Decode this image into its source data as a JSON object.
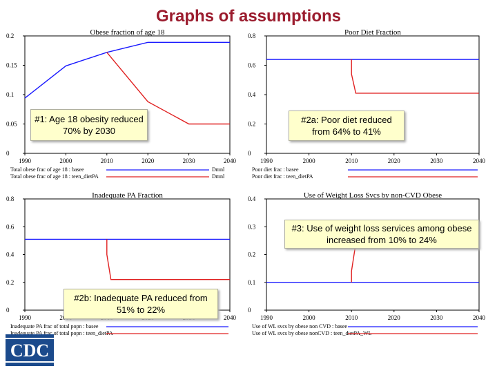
{
  "slide": {
    "title": "Graphs of assumptions",
    "logo_text": "CDC"
  },
  "callouts": {
    "obesity": "#1: Age 18 obesity reduced 70% by 2030",
    "diet": "#2a: Poor diet reduced from 64% to 41%",
    "pa": "#2b: Inadequate PA reduced from 51% to 22%",
    "wl": "#3: Use of weight loss services among obese increased from 10% to 24%"
  },
  "colors": {
    "base": "#1a1aff",
    "policy": "#e02020",
    "title": "#9b1c2e",
    "callout_bg": "#ffffcc"
  },
  "chart_data": [
    {
      "type": "line",
      "title": "Obese fraction of age 18",
      "xlim": [
        1990,
        2040
      ],
      "ylim": [
        0,
        0.2
      ],
      "x_ticks": [
        "1990",
        "2000",
        "2010",
        "2020",
        "2030",
        "2040"
      ],
      "y_ticks": [
        "0",
        "0.05",
        "0.1",
        "0.15",
        "0.2"
      ],
      "series": [
        {
          "name": "Total obese frac of age 18 : basee",
          "unit": "Dmnl",
          "color": "#1a1aff",
          "x": [
            1990,
            2000,
            2010,
            2020,
            2030,
            2040
          ],
          "y": [
            0.094,
            0.149,
            0.172,
            0.189,
            0.189,
            0.189
          ]
        },
        {
          "name": "Total obese frac of age 18 : teen_dietPA",
          "unit": "Dmnl",
          "color": "#e02020",
          "x": [
            2010,
            2020,
            2030,
            2040
          ],
          "y": [
            0.172,
            0.088,
            0.05,
            0.05
          ]
        }
      ]
    },
    {
      "type": "line",
      "title": "Poor Diet Fraction",
      "xlim": [
        1990,
        2040
      ],
      "ylim": [
        0,
        0.8
      ],
      "x_ticks": [
        "1990",
        "2000",
        "2010",
        "2020",
        "2030",
        "2040"
      ],
      "y_ticks": [
        "0",
        "0.2",
        "0.4",
        "0.6",
        "0.8"
      ],
      "series": [
        {
          "name": "Poor diet frac : basee",
          "unit": "",
          "color": "#1a1aff",
          "x": [
            1990,
            2040
          ],
          "y": [
            0.64,
            0.64
          ]
        },
        {
          "name": "Poor diet frac : teen_dietPA",
          "unit": "",
          "color": "#e02020",
          "x": [
            2010,
            2010,
            2011,
            2040
          ],
          "y": [
            0.64,
            0.54,
            0.41,
            0.41
          ]
        }
      ]
    },
    {
      "type": "line",
      "title": "Inadequate PA Fraction",
      "xlim": [
        1990,
        2040
      ],
      "ylim": [
        0,
        0.8
      ],
      "x_ticks": [
        "1990",
        "2000",
        "2010",
        "2020",
        "2030",
        "2040"
      ],
      "y_ticks": [
        "0",
        "0.2",
        "0.4",
        "0.6",
        "0.8"
      ],
      "series": [
        {
          "name": "Inadequate PA frac of total popn : basee",
          "unit": "",
          "color": "#1a1aff",
          "x": [
            1990,
            2040
          ],
          "y": [
            0.51,
            0.51
          ]
        },
        {
          "name": "Inadequate PA frac of total popn : teen_dietPA",
          "unit": "",
          "color": "#e02020",
          "x": [
            2010,
            2010,
            2011,
            2040
          ],
          "y": [
            0.51,
            0.4,
            0.22,
            0.22
          ]
        }
      ]
    },
    {
      "type": "line",
      "title": "Use of Weight Loss Svcs by non-CVD Obese",
      "xlim": [
        1990,
        2040
      ],
      "ylim": [
        0,
        0.4
      ],
      "x_ticks": [
        "1990",
        "2000",
        "2010",
        "2020",
        "2030",
        "2040"
      ],
      "y_ticks": [
        "0",
        "0.1",
        "0.2",
        "0.3",
        "0.4"
      ],
      "series": [
        {
          "name": "Use of WL svcs by obese non CVD : basee",
          "unit": "",
          "color": "#1a1aff",
          "x": [
            1990,
            2040
          ],
          "y": [
            0.1,
            0.1
          ]
        },
        {
          "name": "Use of WL svcs by obese nonCVD : teen_dietPA_WL",
          "unit": "",
          "color": "#e02020",
          "x": [
            2010,
            2010,
            2011,
            2040
          ],
          "y": [
            0.1,
            0.14,
            0.24,
            0.24
          ]
        }
      ]
    }
  ]
}
